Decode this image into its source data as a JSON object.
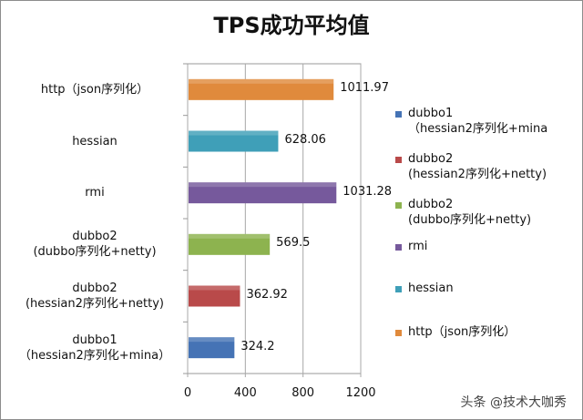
{
  "chart_data": {
    "type": "bar",
    "orientation": "horizontal",
    "title": "TPS成功平均值",
    "categories": [
      "dubbo1\n（hessian2序列化+mina）",
      "dubbo2\n(hessian2序列化+netty)",
      "dubbo2\n(dubbo序列化+netty)",
      "rmi",
      "hessian",
      "http（json序列化）"
    ],
    "values": [
      324.2,
      362.92,
      569.5,
      1031.28,
      628.06,
      1011.97
    ],
    "value_labels": [
      "324.2",
      "362.92",
      "569.5",
      "1031.28",
      "628.06",
      "1011.97"
    ],
    "colors": [
      "#4573b5",
      "#b94a4a",
      "#8db34f",
      "#76599c",
      "#3f9fb8",
      "#e08a3c"
    ],
    "xlim": [
      0,
      1200
    ],
    "xticks": [
      0,
      400,
      800,
      1200
    ],
    "grid": true,
    "legend": {
      "placement": "right",
      "entries": [
        {
          "label": "dubbo1\n（hessian2序列化+mina",
          "color": "#4573b5"
        },
        {
          "label": "dubbo2\n(hessian2序列化+netty)",
          "color": "#b94a4a"
        },
        {
          "label": "dubbo2\n(dubbo序列化+netty)",
          "color": "#8db34f"
        },
        {
          "label": "rmi",
          "color": "#76599c"
        },
        {
          "label": "hessian",
          "color": "#3f9fb8"
        },
        {
          "label": "http（json序列化）",
          "color": "#e08a3c"
        }
      ]
    }
  },
  "watermark": "头条 @技术大咖秀"
}
